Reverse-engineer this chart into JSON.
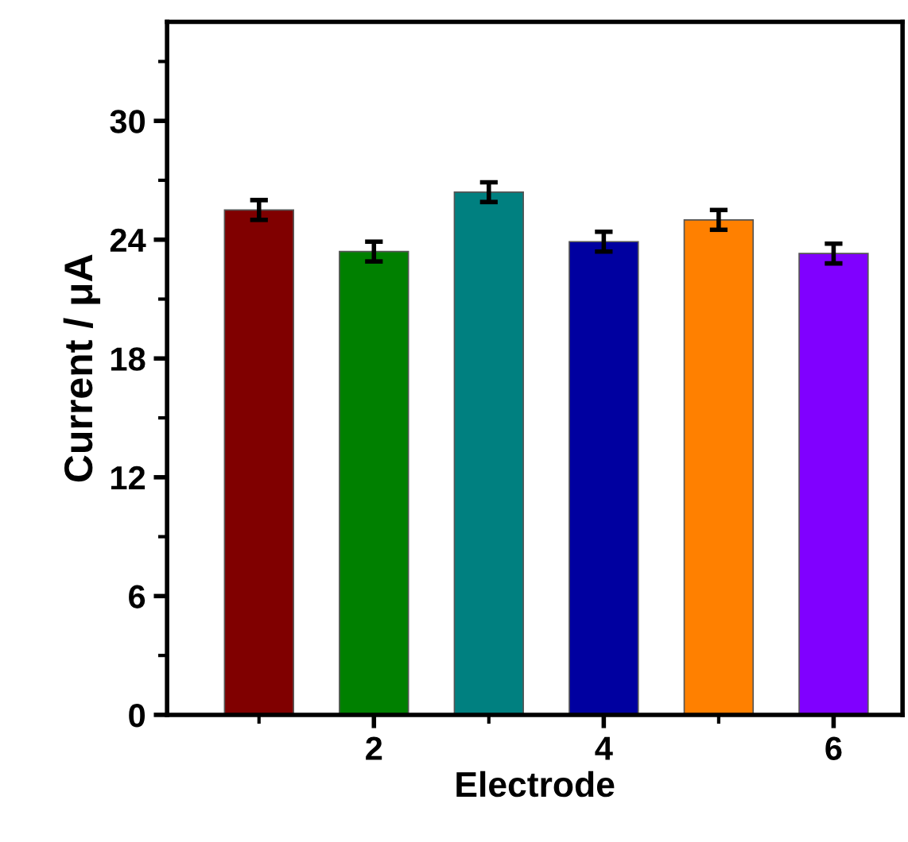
{
  "chart_data": {
    "type": "bar",
    "xlabel": "Electrode",
    "ylabel": "Current / μA",
    "x": [
      1,
      2,
      3,
      4,
      5,
      6
    ],
    "values": [
      25.5,
      23.4,
      26.4,
      23.9,
      25.0,
      23.3
    ],
    "errors": [
      0.5,
      0.5,
      0.5,
      0.5,
      0.5,
      0.5
    ],
    "colors": [
      "#800000",
      "#008000",
      "#008080",
      "#0000a0",
      "#ff8000",
      "#8000ff"
    ],
    "xlim": [
      0.2,
      6.6
    ],
    "xticks": [
      {
        "value": 1,
        "label": null
      },
      2,
      {
        "value": 3,
        "label": null
      },
      4,
      {
        "value": 5,
        "label": null
      },
      6
    ],
    "ylim": [
      0,
      35
    ],
    "yticks": [
      0,
      {
        "value": 3,
        "label": null
      },
      6,
      {
        "value": 9,
        "label": null
      },
      12,
      {
        "value": 15,
        "label": null
      },
      18,
      {
        "value": 21,
        "label": null
      },
      24,
      {
        "value": 27,
        "label": null
      },
      30,
      {
        "value": 33,
        "label": null
      }
    ],
    "grid": false,
    "legend": false
  }
}
